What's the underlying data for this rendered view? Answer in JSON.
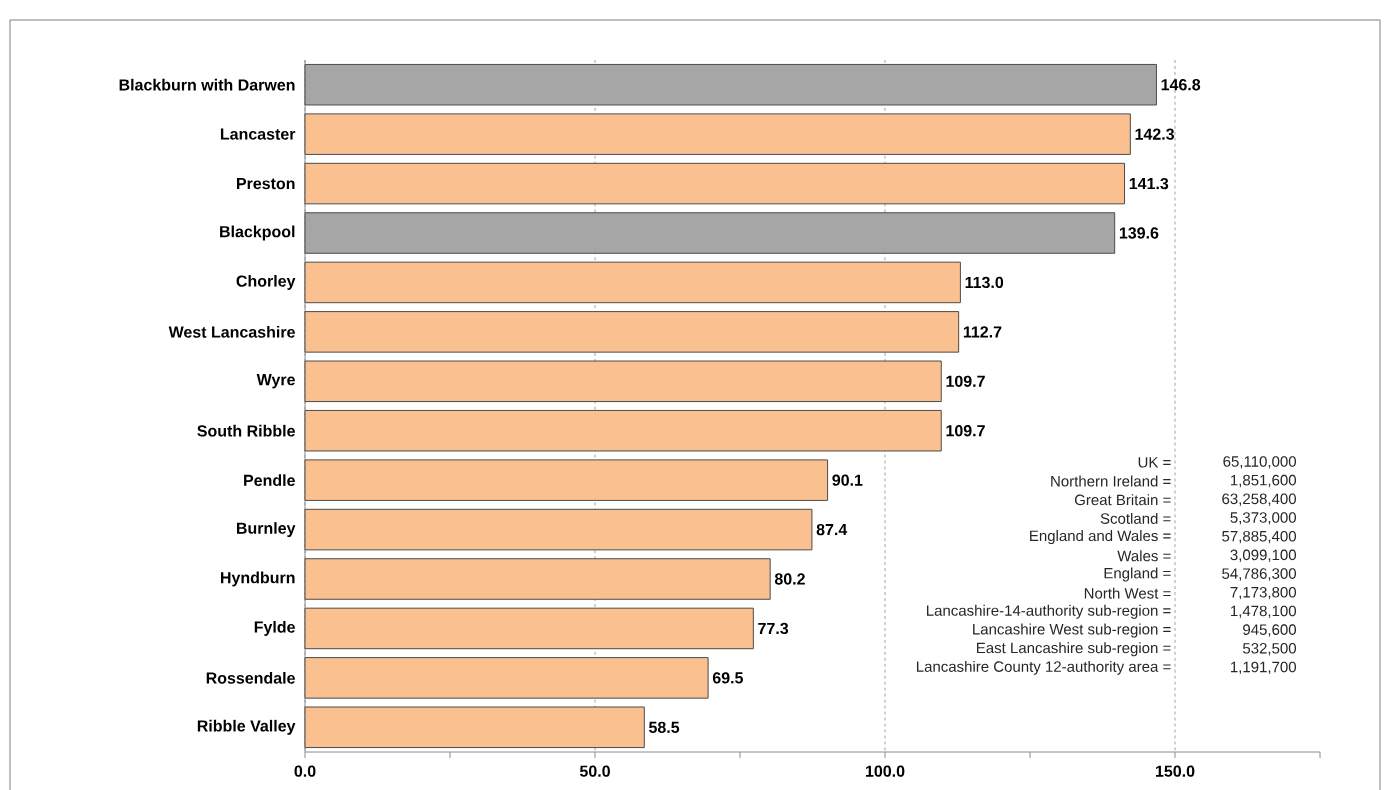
{
  "chart_data": {
    "type": "bar",
    "orientation": "horizontal",
    "categories": [
      "Blackburn with Darwen",
      "Lancaster",
      "Preston",
      "Blackpool",
      "Chorley",
      "West Lancashire",
      "Wyre",
      "South Ribble",
      "Pendle",
      "Burnley",
      "Hyndburn",
      "Fylde",
      "Rossendale",
      "Ribble Valley"
    ],
    "values": [
      146.8,
      142.3,
      141.3,
      139.6,
      113.0,
      112.7,
      109.7,
      109.7,
      90.1,
      87.4,
      80.2,
      77.3,
      69.5,
      58.5
    ],
    "colors": [
      "#a6a6a6",
      "#fac090",
      "#fac090",
      "#a6a6a6",
      "#fac090",
      "#fac090",
      "#fac090",
      "#fac090",
      "#fac090",
      "#fac090",
      "#fac090",
      "#fac090",
      "#fac090",
      "#fac090"
    ],
    "value_labels": [
      "146.8",
      "142.3",
      "141.3",
      "139.6",
      "113.0",
      "112.7",
      "109.7",
      "109.7",
      "90.1",
      "87.4",
      "80.2",
      "77.3",
      "69.5",
      "58.5"
    ],
    "xlim": [
      0,
      175
    ],
    "xticks": [
      {
        "value": 0,
        "label": "0.0"
      },
      {
        "value": 25,
        "label": null
      },
      {
        "value": 50,
        "label": "50.0"
      },
      {
        "value": 75,
        "label": null
      },
      {
        "value": 100,
        "label": "100.0"
      },
      {
        "value": 125,
        "label": null
      },
      {
        "value": 150,
        "label": "150.0"
      },
      {
        "value": 175,
        "label": null
      }
    ],
    "grid": "x",
    "annotations": [
      "UK =",
      "65,110,000",
      "Northern Ireland =",
      "1,851,600",
      "Great Britain =",
      "63,258,400",
      "Scotland =",
      "5,373,000",
      "England and Wales =",
      "57,885,400",
      "Wales =",
      "3,099,100",
      "England =",
      "54,786,300",
      "North West =",
      "7,173,800",
      "Lancashire-14-authority sub-region =",
      "1,478,100",
      "Lancashire West sub-region =",
      "945,600",
      "East Lancashire sub-region =",
      "532,500",
      "Lancashire County 12-authority area =",
      "1,191,700"
    ]
  }
}
